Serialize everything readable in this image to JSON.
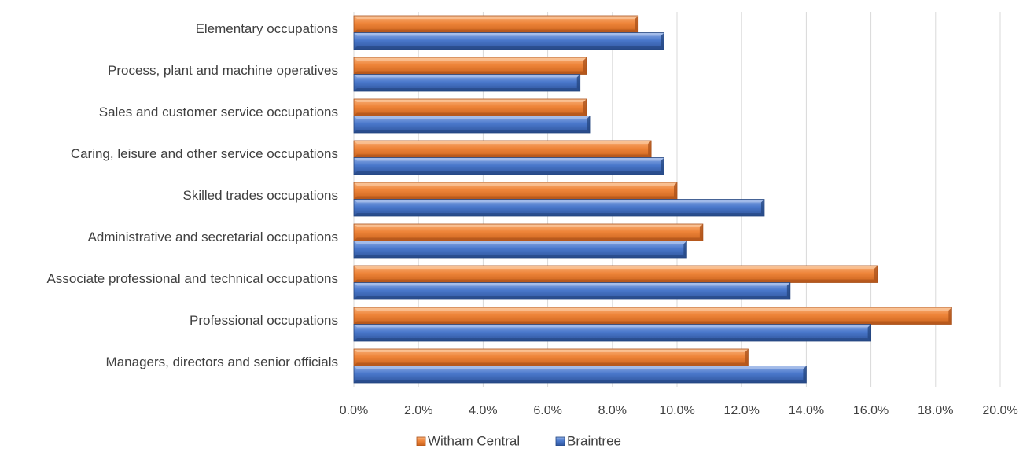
{
  "chart_data": {
    "type": "bar",
    "orientation": "horizontal",
    "style": "3d-beveled",
    "categories": [
      "Elementary occupations",
      "Process, plant and machine operatives",
      "Sales and customer service occupations",
      "Caring, leisure and other service occupations",
      "Skilled trades occupations",
      "Administrative and secretarial occupations",
      "Associate professional and technical occupations",
      "Professional occupations",
      "Managers, directors and senior officials"
    ],
    "series": [
      {
        "name": "Witham Central",
        "color": "#ED7D31",
        "values": [
          8.8,
          7.2,
          7.2,
          9.2,
          10.0,
          10.8,
          16.2,
          18.5,
          12.2
        ]
      },
      {
        "name": "Braintree",
        "color": "#4472C4",
        "values": [
          9.6,
          7.0,
          7.3,
          9.6,
          12.7,
          10.3,
          13.5,
          16.0,
          14.0
        ]
      }
    ],
    "xlim": [
      0,
      20
    ],
    "x_ticks": [
      "0.0%",
      "2.0%",
      "4.0%",
      "6.0%",
      "8.0%",
      "10.0%",
      "12.0%",
      "14.0%",
      "16.0%",
      "18.0%",
      "20.0%"
    ],
    "x_tick_values": [
      0,
      2,
      4,
      6,
      8,
      10,
      12,
      14,
      16,
      18,
      20
    ],
    "grid": "vertical",
    "legend_position": "bottom"
  }
}
